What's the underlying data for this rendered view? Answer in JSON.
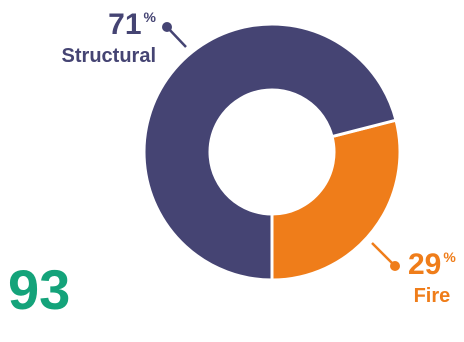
{
  "chart_data": {
    "type": "pie",
    "categories": [
      "Structural",
      "Fire"
    ],
    "values": [
      71,
      29
    ],
    "value_suffix": "%",
    "colors": [
      "#454473",
      "#ef7d1a"
    ],
    "donut": true,
    "total": "93"
  },
  "labels": {
    "structural": {
      "value": "71",
      "unit": "%",
      "name": "Structural"
    },
    "fire": {
      "value": "29",
      "unit": "%",
      "name": "Fire"
    }
  }
}
